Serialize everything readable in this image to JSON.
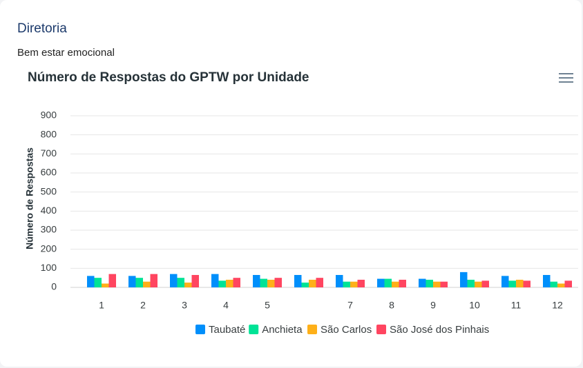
{
  "header": {
    "title": "Diretoria",
    "subtitle": "Bem estar emocional"
  },
  "chart_data": {
    "type": "bar",
    "title": "Número de Respostas do GPTW por Unidade",
    "y_label": "Número de Respostas",
    "categories": [
      "1",
      "2",
      "3",
      "4",
      "5",
      null,
      "7",
      "8",
      "9",
      "10",
      "11",
      "12"
    ],
    "series": [
      {
        "name": "Taubaté",
        "color": "#008ffb",
        "values": [
          60,
          60,
          70,
          70,
          65,
          65,
          65,
          45,
          45,
          80,
          60,
          65
        ]
      },
      {
        "name": "Anchieta",
        "color": "#00e396",
        "values": [
          50,
          50,
          50,
          35,
          45,
          25,
          30,
          45,
          40,
          40,
          35,
          30
        ]
      },
      {
        "name": "São Carlos",
        "color": "#feb019",
        "values": [
          20,
          30,
          25,
          40,
          40,
          40,
          30,
          30,
          30,
          30,
          40,
          20
        ]
      },
      {
        "name": "São José dos Pinhais",
        "color": "#ff4560",
        "values": [
          70,
          70,
          65,
          50,
          50,
          50,
          40,
          40,
          30,
          35,
          35,
          35
        ]
      }
    ],
    "ylim": [
      0,
      900
    ],
    "yticks": [
      0,
      100,
      200,
      300,
      400,
      500,
      600,
      700,
      800,
      900
    ],
    "grid": true,
    "legend": "bottom"
  }
}
